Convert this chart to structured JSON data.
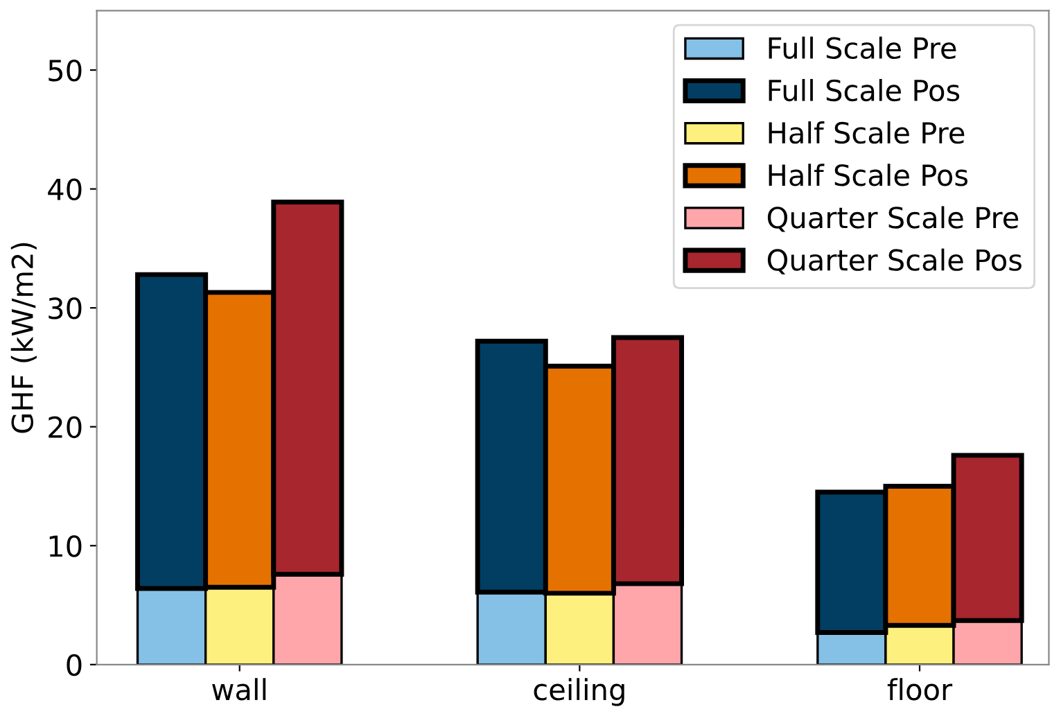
{
  "chart_data": {
    "type": "bar",
    "ylabel": "GHF (kW/m2)",
    "categories": [
      null,
      "wall",
      null,
      null,
      "ceiling",
      null,
      null,
      "floor",
      null
    ],
    "stacked": true,
    "series": [
      {
        "name": "Full Scale Pre",
        "color": "#85c0e6",
        "values": [
          6.4,
          null,
          null,
          6.1,
          null,
          null,
          2.7,
          null,
          null
        ]
      },
      {
        "name": "Full Scale Pos",
        "color": "#023e62",
        "values": [
          26.4,
          null,
          null,
          21.1,
          null,
          null,
          11.8,
          null,
          null
        ]
      },
      {
        "name": "Half Scale Pre",
        "color": "#fdf07e",
        "values": [
          null,
          6.5,
          null,
          null,
          6.0,
          null,
          null,
          3.3,
          null
        ]
      },
      {
        "name": "Half Scale Pos",
        "color": "#e57200",
        "values": [
          null,
          24.8,
          null,
          null,
          19.1,
          null,
          null,
          11.7,
          null
        ]
      },
      {
        "name": "Quarter Scale Pre",
        "color": "#ffa6ab",
        "values": [
          null,
          null,
          7.6,
          null,
          null,
          6.8,
          null,
          null,
          3.7
        ]
      },
      {
        "name": "Quarter Scale Pos",
        "color": "#a8262e",
        "values": [
          null,
          null,
          31.3,
          null,
          null,
          20.7,
          null,
          null,
          13.9
        ]
      }
    ],
    "ylim": [
      0,
      55
    ],
    "yticks": [
      0,
      10,
      20,
      30,
      40,
      50
    ],
    "grid": false,
    "legend": "top right"
  }
}
